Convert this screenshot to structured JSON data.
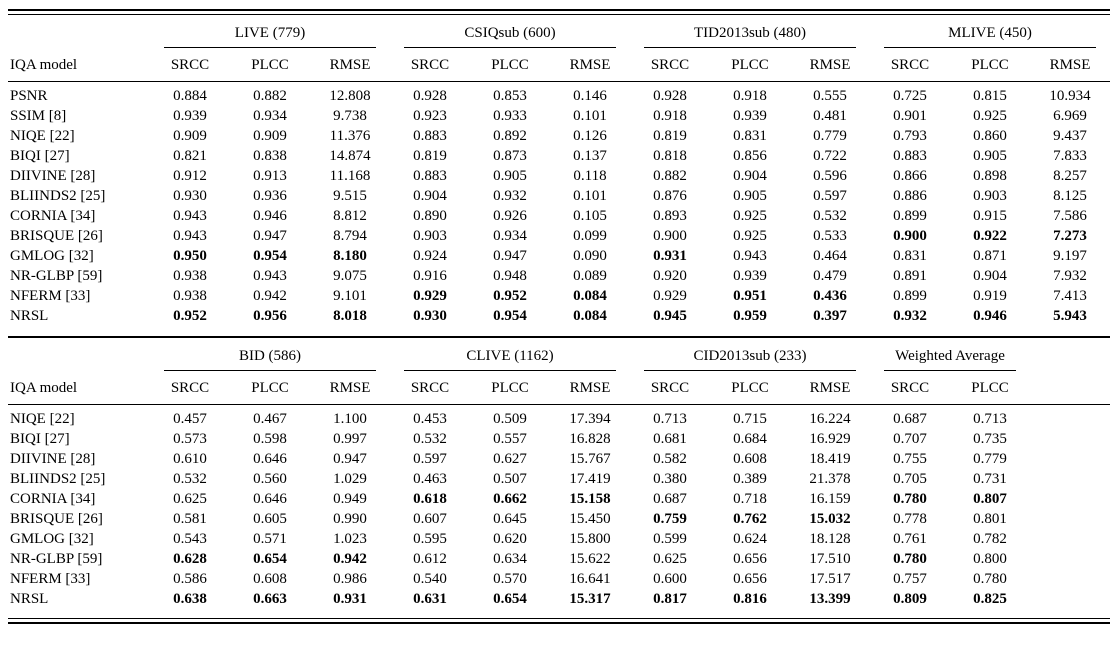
{
  "table": {
    "section_top": {
      "model_header": "IQA model",
      "groups": [
        {
          "label": "LIVE (779)",
          "cols": [
            "SRCC",
            "PLCC",
            "RMSE"
          ]
        },
        {
          "label": "CSIQsub (600)",
          "cols": [
            "SRCC",
            "PLCC",
            "RMSE"
          ]
        },
        {
          "label": "TID2013sub (480)",
          "cols": [
            "SRCC",
            "PLCC",
            "RMSE"
          ]
        },
        {
          "label": "MLIVE (450)",
          "cols": [
            "SRCC",
            "PLCC",
            "RMSE"
          ]
        }
      ],
      "rows": [
        {
          "model": "PSNR",
          "v": [
            "0.884",
            "0.882",
            "12.808",
            "0.928",
            "0.853",
            "0.146",
            "0.928",
            "0.918",
            "0.555",
            "0.725",
            "0.815",
            "10.934"
          ],
          "b": [
            0,
            0,
            0,
            0,
            0,
            0,
            0,
            0,
            0,
            0,
            0,
            0
          ]
        },
        {
          "model": "SSIM [8]",
          "v": [
            "0.939",
            "0.934",
            "9.738",
            "0.923",
            "0.933",
            "0.101",
            "0.918",
            "0.939",
            "0.481",
            "0.901",
            "0.925",
            "6.969"
          ],
          "b": [
            0,
            0,
            0,
            0,
            0,
            0,
            0,
            0,
            0,
            0,
            0,
            0
          ]
        },
        {
          "model": "NIQE [22]",
          "v": [
            "0.909",
            "0.909",
            "11.376",
            "0.883",
            "0.892",
            "0.126",
            "0.819",
            "0.831",
            "0.779",
            "0.793",
            "0.860",
            "9.437"
          ],
          "b": [
            0,
            0,
            0,
            0,
            0,
            0,
            0,
            0,
            0,
            0,
            0,
            0
          ]
        },
        {
          "model": "BIQI [27]",
          "v": [
            "0.821",
            "0.838",
            "14.874",
            "0.819",
            "0.873",
            "0.137",
            "0.818",
            "0.856",
            "0.722",
            "0.883",
            "0.905",
            "7.833"
          ],
          "b": [
            0,
            0,
            0,
            0,
            0,
            0,
            0,
            0,
            0,
            0,
            0,
            0
          ]
        },
        {
          "model": "DIIVINE [28]",
          "v": [
            "0.912",
            "0.913",
            "11.168",
            "0.883",
            "0.905",
            "0.118",
            "0.882",
            "0.904",
            "0.596",
            "0.866",
            "0.898",
            "8.257"
          ],
          "b": [
            0,
            0,
            0,
            0,
            0,
            0,
            0,
            0,
            0,
            0,
            0,
            0
          ]
        },
        {
          "model": "BLIINDS2 [25]",
          "v": [
            "0.930",
            "0.936",
            "9.515",
            "0.904",
            "0.932",
            "0.101",
            "0.876",
            "0.905",
            "0.597",
            "0.886",
            "0.903",
            "8.125"
          ],
          "b": [
            0,
            0,
            0,
            0,
            0,
            0,
            0,
            0,
            0,
            0,
            0,
            0
          ]
        },
        {
          "model": "CORNIA [34]",
          "v": [
            "0.943",
            "0.946",
            "8.812",
            "0.890",
            "0.926",
            "0.105",
            "0.893",
            "0.925",
            "0.532",
            "0.899",
            "0.915",
            "7.586"
          ],
          "b": [
            0,
            0,
            0,
            0,
            0,
            0,
            0,
            0,
            0,
            0,
            0,
            0
          ]
        },
        {
          "model": "BRISQUE [26]",
          "v": [
            "0.943",
            "0.947",
            "8.794",
            "0.903",
            "0.934",
            "0.099",
            "0.900",
            "0.925",
            "0.533",
            "0.900",
            "0.922",
            "7.273"
          ],
          "b": [
            0,
            0,
            0,
            0,
            0,
            0,
            0,
            0,
            0,
            1,
            1,
            1
          ]
        },
        {
          "model": "GMLOG [32]",
          "v": [
            "0.950",
            "0.954",
            "8.180",
            "0.924",
            "0.947",
            "0.090",
            "0.931",
            "0.943",
            "0.464",
            "0.831",
            "0.871",
            "9.197"
          ],
          "b": [
            1,
            1,
            1,
            0,
            0,
            0,
            1,
            0,
            0,
            0,
            0,
            0
          ]
        },
        {
          "model": "NR-GLBP [59]",
          "v": [
            "0.938",
            "0.943",
            "9.075",
            "0.916",
            "0.948",
            "0.089",
            "0.920",
            "0.939",
            "0.479",
            "0.891",
            "0.904",
            "7.932"
          ],
          "b": [
            0,
            0,
            0,
            0,
            0,
            0,
            0,
            0,
            0,
            0,
            0,
            0
          ]
        },
        {
          "model": "NFERM [33]",
          "v": [
            "0.938",
            "0.942",
            "9.101",
            "0.929",
            "0.952",
            "0.084",
            "0.929",
            "0.951",
            "0.436",
            "0.899",
            "0.919",
            "7.413"
          ],
          "b": [
            0,
            0,
            0,
            1,
            1,
            1,
            0,
            1,
            1,
            0,
            0,
            0
          ]
        },
        {
          "model": "NRSL",
          "v": [
            "0.952",
            "0.956",
            "8.018",
            "0.930",
            "0.954",
            "0.084",
            "0.945",
            "0.959",
            "0.397",
            "0.932",
            "0.946",
            "5.943"
          ],
          "b": [
            1,
            1,
            1,
            1,
            1,
            1,
            1,
            1,
            1,
            1,
            1,
            1
          ]
        }
      ]
    },
    "section_bottom": {
      "model_header": "IQA model",
      "groups": [
        {
          "label": "BID (586)",
          "cols": [
            "SRCC",
            "PLCC",
            "RMSE"
          ]
        },
        {
          "label": "CLIVE (1162)",
          "cols": [
            "SRCC",
            "PLCC",
            "RMSE"
          ]
        },
        {
          "label": "CID2013sub (233)",
          "cols": [
            "SRCC",
            "PLCC",
            "RMSE"
          ]
        },
        {
          "label": "Weighted Average",
          "cols": [
            "SRCC",
            "PLCC"
          ]
        }
      ],
      "rows": [
        {
          "model": "NIQE [22]",
          "v": [
            "0.457",
            "0.467",
            "1.100",
            "0.453",
            "0.509",
            "17.394",
            "0.713",
            "0.715",
            "16.224",
            "0.687",
            "0.713"
          ],
          "b": [
            0,
            0,
            0,
            0,
            0,
            0,
            0,
            0,
            0,
            0,
            0
          ]
        },
        {
          "model": "BIQI [27]",
          "v": [
            "0.573",
            "0.598",
            "0.997",
            "0.532",
            "0.557",
            "16.828",
            "0.681",
            "0.684",
            "16.929",
            "0.707",
            "0.735"
          ],
          "b": [
            0,
            0,
            0,
            0,
            0,
            0,
            0,
            0,
            0,
            0,
            0
          ]
        },
        {
          "model": "DIIVINE [28]",
          "v": [
            "0.610",
            "0.646",
            "0.947",
            "0.597",
            "0.627",
            "15.767",
            "0.582",
            "0.608",
            "18.419",
            "0.755",
            "0.779"
          ],
          "b": [
            0,
            0,
            0,
            0,
            0,
            0,
            0,
            0,
            0,
            0,
            0
          ]
        },
        {
          "model": "BLIINDS2 [25]",
          "v": [
            "0.532",
            "0.560",
            "1.029",
            "0.463",
            "0.507",
            "17.419",
            "0.380",
            "0.389",
            "21.378",
            "0.705",
            "0.731"
          ],
          "b": [
            0,
            0,
            0,
            0,
            0,
            0,
            0,
            0,
            0,
            0,
            0
          ]
        },
        {
          "model": "CORNIA [34]",
          "v": [
            "0.625",
            "0.646",
            "0.949",
            "0.618",
            "0.662",
            "15.158",
            "0.687",
            "0.718",
            "16.159",
            "0.780",
            "0.807"
          ],
          "b": [
            0,
            0,
            0,
            1,
            1,
            1,
            0,
            0,
            0,
            1,
            1
          ]
        },
        {
          "model": "BRISQUE [26]",
          "v": [
            "0.581",
            "0.605",
            "0.990",
            "0.607",
            "0.645",
            "15.450",
            "0.759",
            "0.762",
            "15.032",
            "0.778",
            "0.801"
          ],
          "b": [
            0,
            0,
            0,
            0,
            0,
            0,
            1,
            1,
            1,
            0,
            0
          ]
        },
        {
          "model": "GMLOG [32]",
          "v": [
            "0.543",
            "0.571",
            "1.023",
            "0.595",
            "0.620",
            "15.800",
            "0.599",
            "0.624",
            "18.128",
            "0.761",
            "0.782"
          ],
          "b": [
            0,
            0,
            0,
            0,
            0,
            0,
            0,
            0,
            0,
            0,
            0
          ]
        },
        {
          "model": "NR-GLBP [59]",
          "v": [
            "0.628",
            "0.654",
            "0.942",
            "0.612",
            "0.634",
            "15.622",
            "0.625",
            "0.656",
            "17.510",
            "0.780",
            "0.800"
          ],
          "b": [
            1,
            1,
            1,
            0,
            0,
            0,
            0,
            0,
            0,
            1,
            0
          ]
        },
        {
          "model": "NFERM [33]",
          "v": [
            "0.586",
            "0.608",
            "0.986",
            "0.540",
            "0.570",
            "16.641",
            "0.600",
            "0.656",
            "17.517",
            "0.757",
            "0.780"
          ],
          "b": [
            0,
            0,
            0,
            0,
            0,
            0,
            0,
            0,
            0,
            0,
            0
          ]
        },
        {
          "model": "NRSL",
          "v": [
            "0.638",
            "0.663",
            "0.931",
            "0.631",
            "0.654",
            "15.317",
            "0.817",
            "0.816",
            "13.399",
            "0.809",
            "0.825"
          ],
          "b": [
            1,
            1,
            1,
            1,
            1,
            1,
            1,
            1,
            1,
            1,
            1
          ]
        }
      ]
    }
  }
}
